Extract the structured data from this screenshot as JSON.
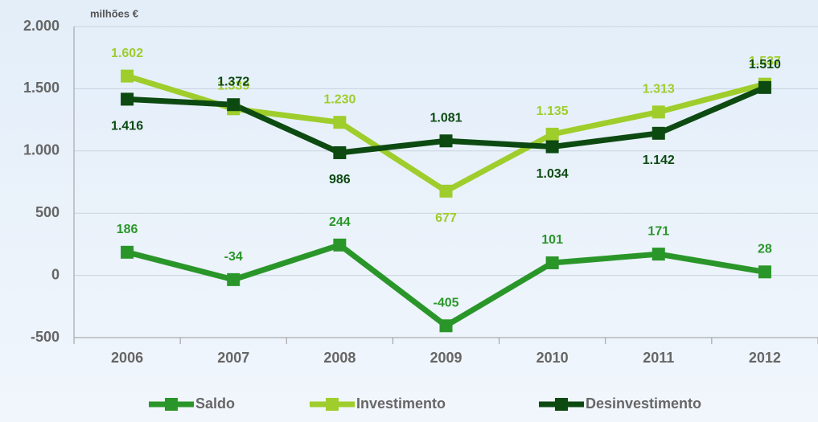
{
  "chart_data": {
    "type": "line",
    "y_axis_label": "milhões €",
    "categories": [
      "2006",
      "2007",
      "2008",
      "2009",
      "2010",
      "2011",
      "2012"
    ],
    "series": [
      {
        "name": "Saldo",
        "color": "#2a962a",
        "values": [
          186,
          -34,
          244,
          -405,
          101,
          171,
          28
        ]
      },
      {
        "name": "Investimento",
        "color": "#9fcd2c",
        "values": [
          1602,
          1339,
          1230,
          677,
          1135,
          1313,
          1537
        ],
        "value_labels": [
          "1.602",
          "1.339",
          "1.230",
          "677",
          "1.135",
          "1.313",
          "1.537"
        ]
      },
      {
        "name": "Desinvestimento",
        "color": "#0c4a12",
        "values": [
          1416,
          1372,
          986,
          1081,
          1034,
          1142,
          1510
        ],
        "value_labels": [
          "1.416",
          "1.372",
          "986",
          "1.081",
          "1.034",
          "1.142",
          "1.510"
        ]
      }
    ],
    "ylim": [
      -500,
      2000
    ],
    "yticks": [
      -500,
      0,
      500,
      {
        "value": 1000,
        "label": "1.000"
      },
      {
        "value": 1500,
        "label": "1.500"
      },
      {
        "value": 2000,
        "label": "2.000"
      }
    ],
    "grid": true,
    "legend": "bottom"
  }
}
